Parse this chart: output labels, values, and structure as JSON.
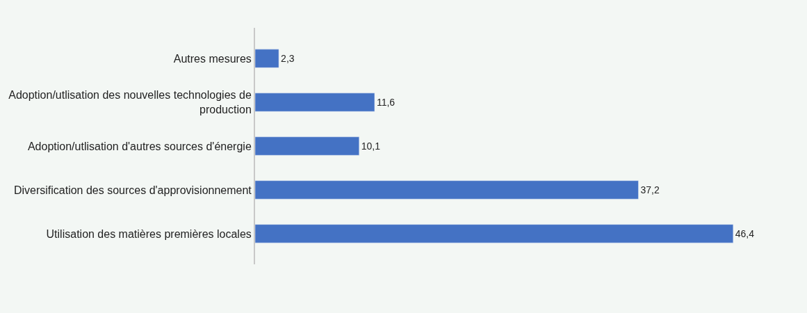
{
  "chart_data": {
    "type": "bar",
    "orientation": "horizontal",
    "categories": [
      "Autres mesures",
      "Adoption/utlisation des nouvelles technologies de production",
      "Adoption/utlisation d'autres sources d'énergie",
      "Diversification des sources d'approvisionnement",
      "Utilisation des matières premières locales"
    ],
    "values": [
      2.3,
      11.6,
      10.1,
      37.2,
      46.4
    ],
    "value_labels": [
      "2,3",
      "11,6",
      "10,1",
      "37,2",
      "46,4"
    ],
    "color": "#4472c4",
    "tick_labels": "y"
  }
}
